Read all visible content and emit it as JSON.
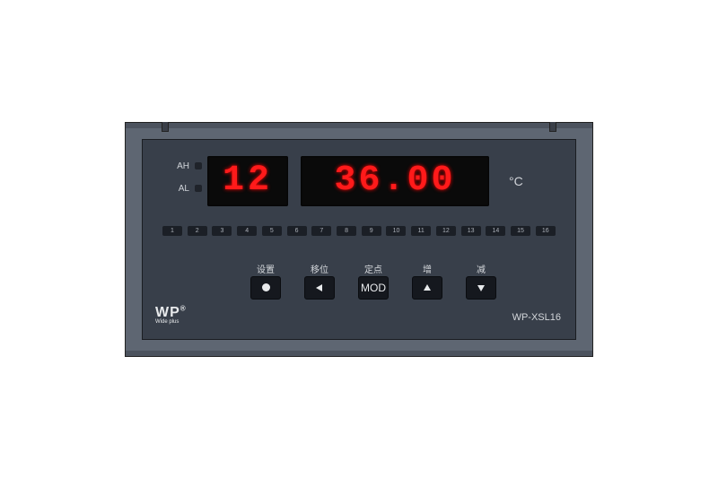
{
  "device": {
    "bezel_color": "#5e6672",
    "face_color": "#383f4a",
    "display_bg": "#0a0a0a",
    "led_color": "#ff1a1a"
  },
  "indicators": {
    "ah": "AH",
    "al": "AL"
  },
  "display": {
    "channel": "12",
    "value": "36.00",
    "unit": "°C"
  },
  "channels": [
    "1",
    "2",
    "3",
    "4",
    "5",
    "6",
    "7",
    "8",
    "9",
    "10",
    "11",
    "12",
    "13",
    "14",
    "15",
    "16"
  ],
  "buttons": [
    {
      "label": "设置",
      "icon": "circle"
    },
    {
      "label": "移位",
      "icon": "left"
    },
    {
      "label": "定点",
      "icon": "text",
      "text": "MOD"
    },
    {
      "label": "增",
      "icon": "up"
    },
    {
      "label": "减",
      "icon": "down"
    }
  ],
  "brand": {
    "logo": "WP",
    "reg": "®",
    "tagline": "Wide plus"
  },
  "model": "WP-XSL16"
}
